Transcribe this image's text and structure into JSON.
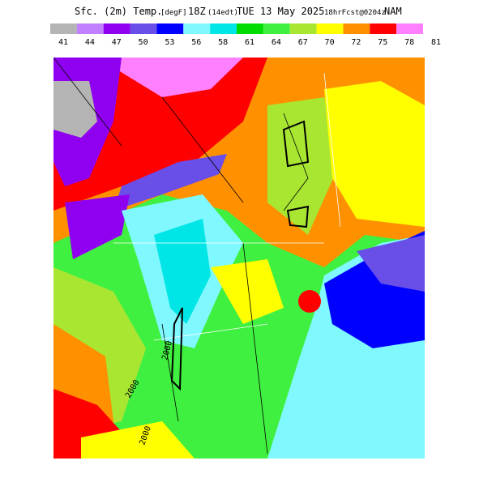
{
  "header": {
    "title_main": "Sfc. (2m) Temp.",
    "units": "[degF]",
    "valid": "18Z",
    "local": "(14edt)",
    "date": "TUE 13 May 2025",
    "forecast": "18hrFcst@0204z",
    "model": "NAM"
  },
  "legend": {
    "labels": [
      41,
      44,
      47,
      50,
      53,
      56,
      58,
      61,
      64,
      67,
      70,
      72,
      75,
      78,
      81
    ],
    "colors": [
      "#b4b4b4",
      "#c080ff",
      "#9000f0",
      "#6a4ee8",
      "#0000ff",
      "#80f8ff",
      "#00e6e6",
      "#00dc00",
      "#40f040",
      "#a8e632",
      "#ffff00",
      "#ff9000",
      "#ff0000",
      "#ff80ff"
    ]
  },
  "map": {
    "contour_labels": [
      "2000",
      "2000",
      "2000"
    ]
  }
}
